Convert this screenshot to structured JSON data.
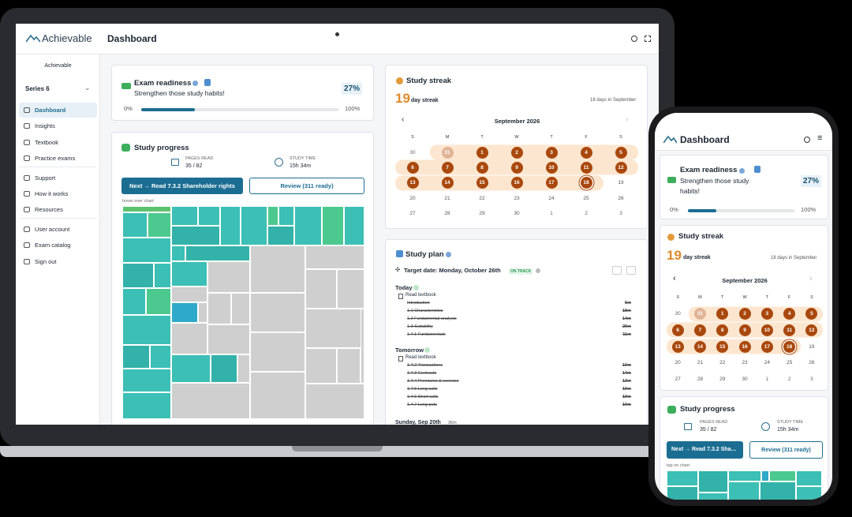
{
  "brand": "Achievable",
  "header": {
    "title": "Dashboard"
  },
  "sidebar": {
    "org": "Achievable",
    "exam": "Series 6",
    "nav": [
      "Dashboard",
      "Insights",
      "Textbook",
      "Practice exams",
      "Support",
      "How it works",
      "Resources",
      "User account",
      "Exam catalog",
      "Sign out"
    ]
  },
  "exam_readiness": {
    "title": "Exam readiness",
    "subtitle": "Strengthen those study habits!",
    "value": 27,
    "value_label": "27%",
    "scale": [
      {
        "value": 0,
        "label": "0%"
      },
      {
        "value": 100,
        "label": "100%"
      }
    ]
  },
  "study_progress": {
    "title": "Study progress",
    "pages_label": "PAGES READ",
    "pages": "35 / 82",
    "time_label": "STUDY TIME",
    "time": "15h 34m",
    "next": "Next → Read 7.3.2 Shareholder rights",
    "review": "Review (311 ready)",
    "hint": "hover over chart",
    "hint_mobile": "tap on chart"
  },
  "study_streak": {
    "title": "Study streak",
    "count": "19",
    "unit": "day streak",
    "note": "18 days in September",
    "month": "September 2026",
    "weekdays": [
      "S",
      "M",
      "T",
      "W",
      "T",
      "F",
      "S"
    ],
    "days": [
      {
        "day": "30",
        "state": "out"
      },
      {
        "day": "31",
        "state": "partial"
      },
      {
        "day": "1",
        "state": "done"
      },
      {
        "day": "2",
        "state": "done"
      },
      {
        "day": "3",
        "state": "done"
      },
      {
        "day": "4",
        "state": "done"
      },
      {
        "day": "5",
        "state": "done"
      },
      {
        "day": "6",
        "state": "done"
      },
      {
        "day": "7",
        "state": "done"
      },
      {
        "day": "8",
        "state": "done"
      },
      {
        "day": "9",
        "state": "done"
      },
      {
        "day": "10",
        "state": "done"
      },
      {
        "day": "11",
        "state": "done"
      },
      {
        "day": "12",
        "state": "done"
      },
      {
        "day": "13",
        "state": "done"
      },
      {
        "day": "14",
        "state": "done"
      },
      {
        "day": "15",
        "state": "done"
      },
      {
        "day": "16",
        "state": "done"
      },
      {
        "day": "17",
        "state": "done"
      },
      {
        "day": "18",
        "state": "today"
      },
      {
        "day": "19",
        "state": "plain"
      },
      {
        "day": "20",
        "state": "plain"
      },
      {
        "day": "21",
        "state": "plain"
      },
      {
        "day": "22",
        "state": "plain"
      },
      {
        "day": "23",
        "state": "plain"
      },
      {
        "day": "24",
        "state": "plain"
      },
      {
        "day": "25",
        "state": "plain"
      },
      {
        "day": "26",
        "state": "plain"
      },
      {
        "day": "27",
        "state": "plain"
      },
      {
        "day": "28",
        "state": "plain"
      },
      {
        "day": "29",
        "state": "plain"
      },
      {
        "day": "30",
        "state": "plain"
      },
      {
        "day": "1",
        "state": "out"
      },
      {
        "day": "2",
        "state": "out"
      },
      {
        "day": "3",
        "state": "out"
      }
    ]
  },
  "study_plan": {
    "title": "Study plan",
    "target": "Target date: Monday, October 26th",
    "status": "ON TRACK",
    "groups": [
      {
        "label": "Today",
        "task": "Read textbook",
        "items": [
          {
            "name": "Introduction",
            "time": "5m"
          },
          {
            "name": "1.1 Characteristics",
            "time": "18m"
          },
          {
            "name": "1.2 Fundamental analysis",
            "time": "14m"
          },
          {
            "name": "1.3 Suitability",
            "time": "29m"
          },
          {
            "name": "1.4.1 Fundamentals",
            "time": "11m"
          }
        ]
      },
      {
        "label": "Tomorrow",
        "task": "Read textbook",
        "items": [
          {
            "name": "1.4.2 Transactions",
            "time": "10m"
          },
          {
            "name": "1.4.3 Contracts",
            "time": "14m"
          },
          {
            "name": "1.4.4 Premiums & exercise",
            "time": "13m"
          },
          {
            "name": "1.4.5 Long calls",
            "time": "10m"
          },
          {
            "name": "1.4.6 Short calls",
            "time": "10m"
          },
          {
            "name": "1.4.7 Long puts",
            "time": "10m"
          }
        ]
      }
    ],
    "next_day": "Sunday, Sep 20th",
    "next_day_time": "36m"
  }
}
